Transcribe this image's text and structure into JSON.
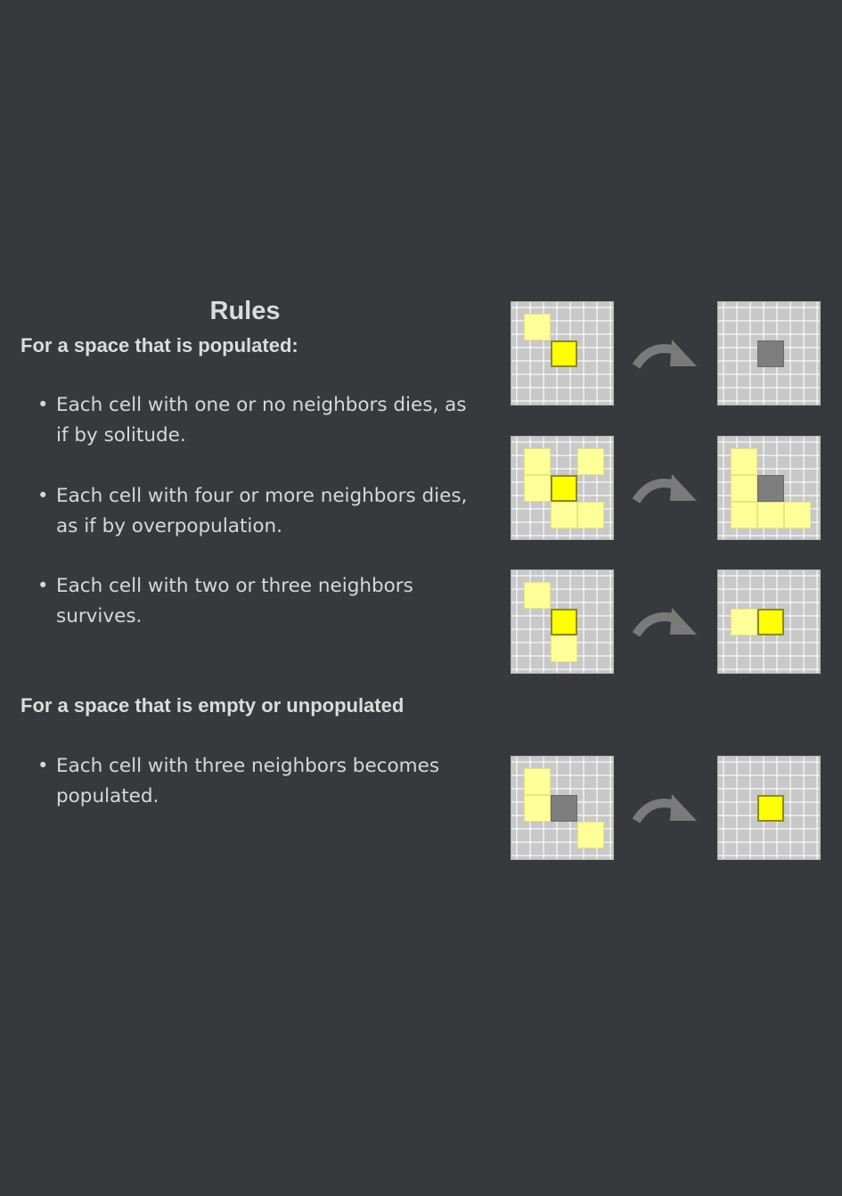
{
  "title": "Rules",
  "populated_heading": "For a space that is populated:",
  "empty_heading": "For a space that is empty or unpopulated",
  "rules": [
    "Each cell with one or no neighbors dies, as if by solitude.",
    "Each cell with four or more neighbors dies, as if by overpopulation.",
    "Each cell with two or three neighbors survives.",
    "Each cell with three neighbors becomes populated."
  ],
  "icons": {
    "bullet": "•",
    "transition": "curved-arrow-icon"
  },
  "colors": {
    "background": "#38393d",
    "grid": "#c8c8c8",
    "neighbor_cell": "#ffff99",
    "focus_cell": "#ffff00",
    "dead_cell": "#7e7e7e"
  },
  "examples": [
    {
      "before": [
        [
          0,
          0,
          "n"
        ],
        [
          1,
          1,
          "f"
        ]
      ],
      "after": [
        [
          1,
          1,
          "d"
        ]
      ]
    },
    {
      "before": [
        [
          0,
          0,
          "n"
        ],
        [
          2,
          0,
          "n"
        ],
        [
          0,
          1,
          "n"
        ],
        [
          1,
          1,
          "f"
        ],
        [
          1,
          2,
          "n"
        ],
        [
          2,
          2,
          "n"
        ]
      ],
      "after": [
        [
          0,
          0,
          "n"
        ],
        [
          0,
          1,
          "n"
        ],
        [
          1,
          1,
          "d"
        ],
        [
          0,
          2,
          "n"
        ],
        [
          1,
          2,
          "n"
        ],
        [
          2,
          2,
          "n"
        ]
      ]
    },
    {
      "before": [
        [
          0,
          0,
          "n"
        ],
        [
          1,
          1,
          "f"
        ],
        [
          1,
          2,
          "n"
        ]
      ],
      "after": [
        [
          0,
          1,
          "n"
        ],
        [
          1,
          1,
          "f"
        ]
      ]
    },
    {
      "before": [
        [
          0,
          0,
          "n"
        ],
        [
          0,
          1,
          "n"
        ],
        [
          1,
          1,
          "d"
        ],
        [
          2,
          2,
          "n"
        ]
      ],
      "after": [
        [
          1,
          1,
          "f"
        ]
      ]
    }
  ]
}
